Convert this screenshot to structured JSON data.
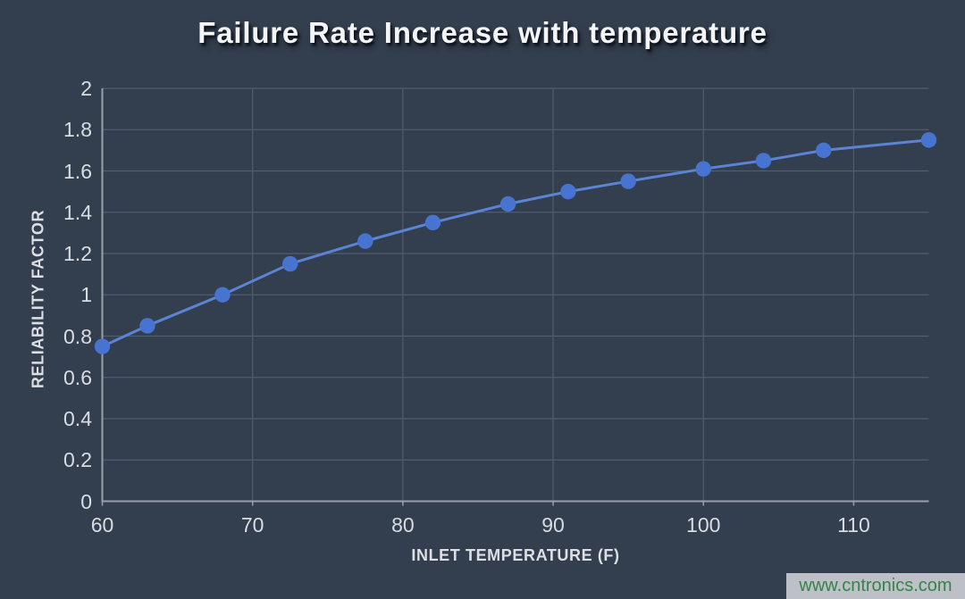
{
  "chart_data": {
    "type": "line",
    "title": "Failure Rate Increase with temperature",
    "xlabel": "INLET TEMPERATURE (F)",
    "ylabel": "RELIABILITY FACTOR",
    "series": [
      {
        "name": "Reliability Factor",
        "x": [
          60,
          63,
          68,
          72.5,
          77.5,
          82,
          87,
          91,
          95,
          100,
          104,
          108,
          115
        ],
        "y": [
          0.75,
          0.85,
          1.0,
          1.15,
          1.26,
          1.35,
          1.44,
          1.5,
          1.55,
          1.61,
          1.65,
          1.7,
          1.75
        ]
      }
    ],
    "xlim": [
      60,
      115
    ],
    "ylim": [
      0,
      2
    ],
    "x_ticks": [
      60,
      70,
      80,
      90,
      100,
      110
    ],
    "y_ticks": [
      0,
      0.2,
      0.4,
      0.6,
      0.8,
      1,
      1.2,
      1.4,
      1.6,
      1.8,
      2
    ],
    "grid": true,
    "legend": false,
    "marker": "circle",
    "colors": {
      "background": "#333e4e",
      "line": "#5b84d4",
      "marker": "#4674d0",
      "grid": "#525d6e",
      "axis": "#98a0ac",
      "tick_label": "#d9dde2",
      "axis_title": "#dce0e5",
      "title": "#f4f5f7"
    }
  },
  "watermark": {
    "text": "www.cntronics.com",
    "text_color": "#35884a",
    "background": "#c5c8cd"
  }
}
